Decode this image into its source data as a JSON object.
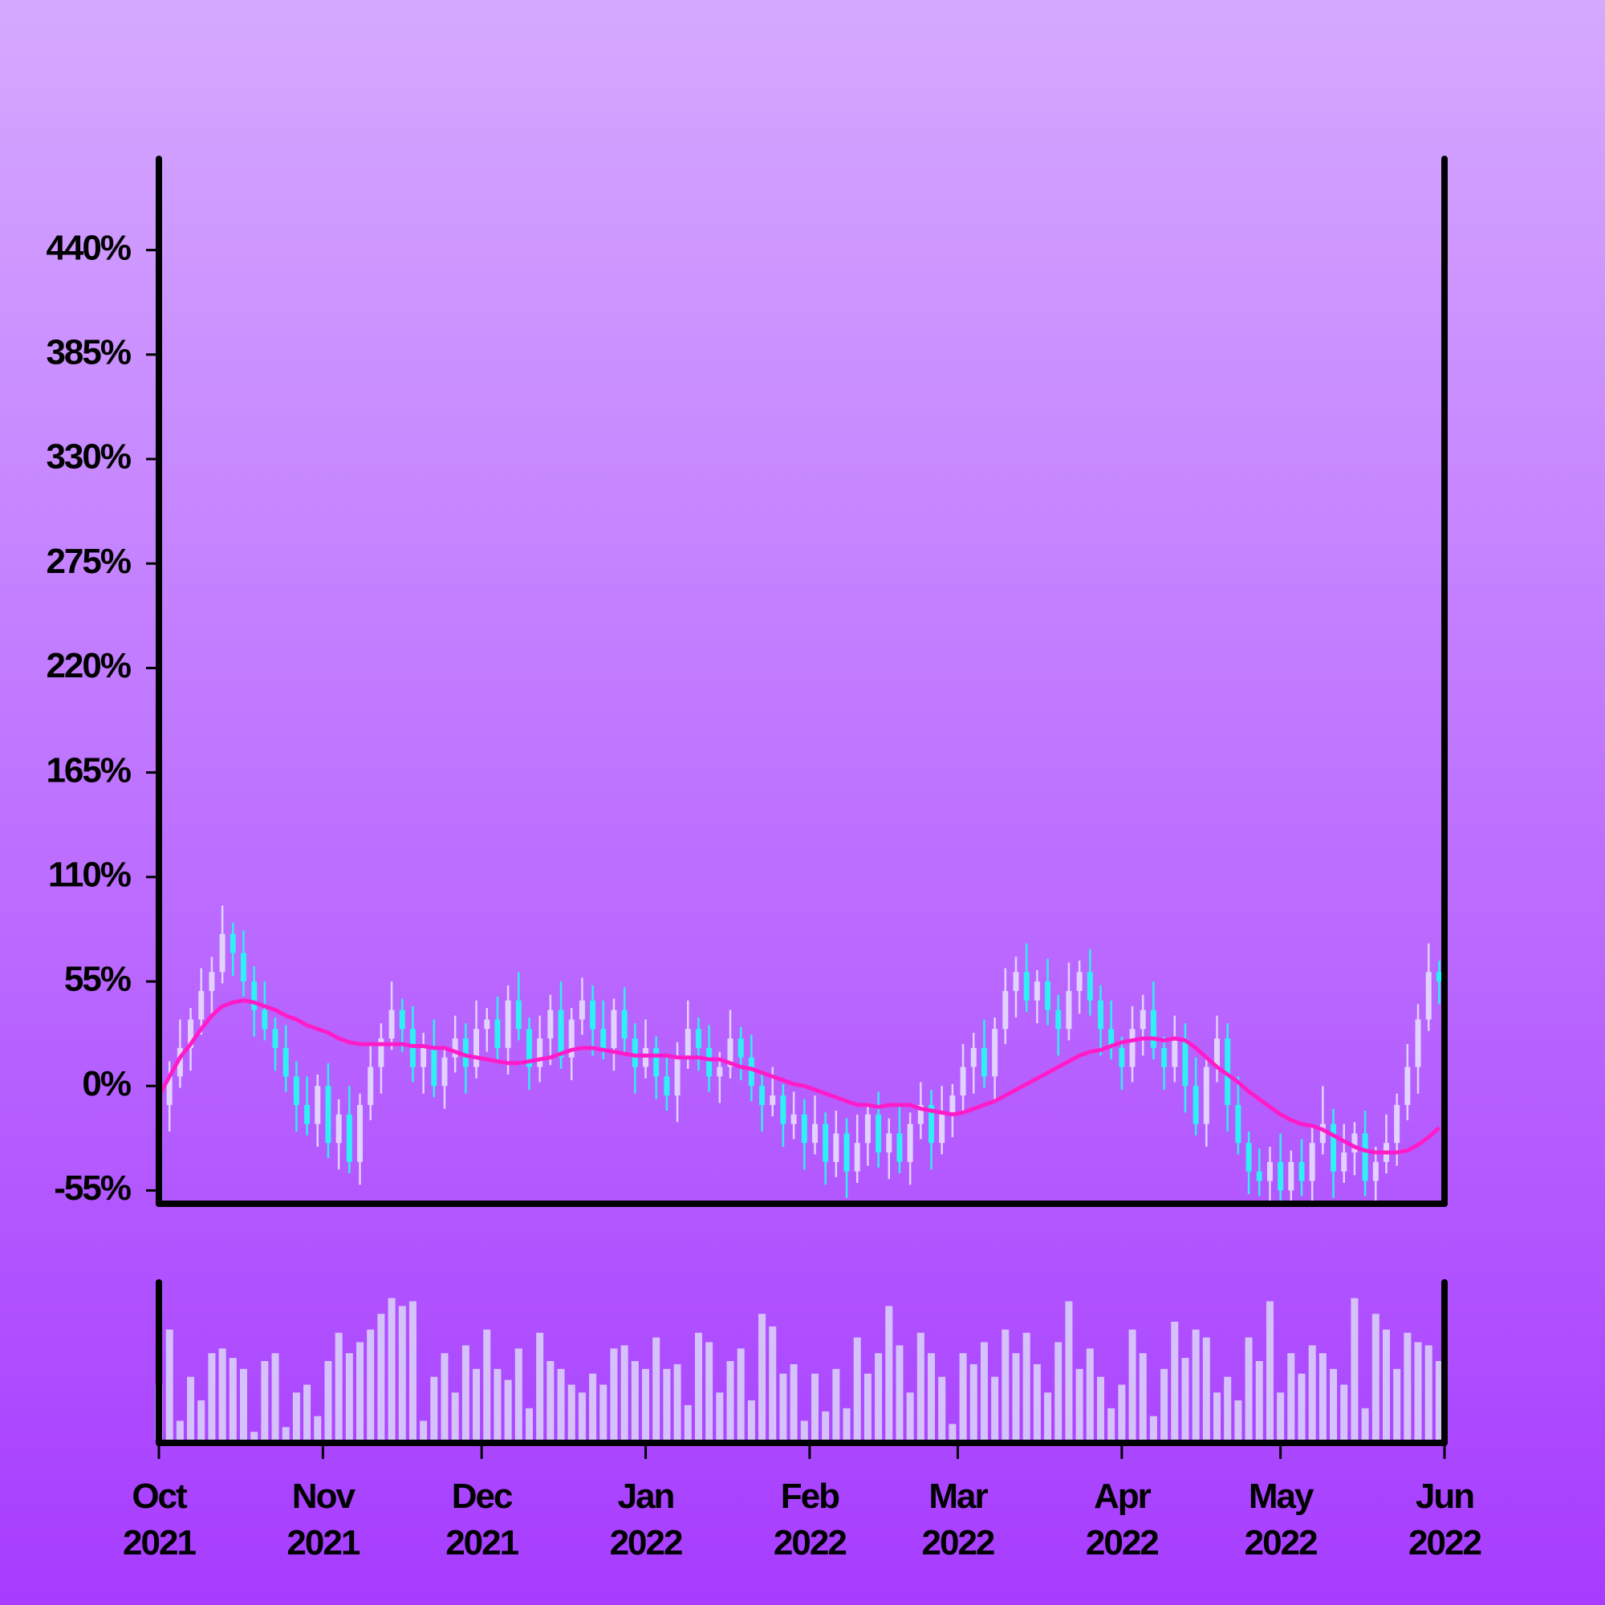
{
  "chart_data": {
    "type": "ohlc",
    "x": [
      0,
      2,
      4,
      6,
      8,
      10,
      12,
      14,
      16,
      18,
      20,
      22,
      24,
      26,
      28,
      30,
      32,
      34,
      36,
      38,
      40,
      42,
      44,
      46,
      48,
      50,
      52,
      54,
      56,
      58,
      60,
      62,
      64,
      66,
      68,
      70,
      72,
      74,
      76,
      78,
      80,
      82,
      84,
      86,
      88,
      90,
      92,
      94,
      96,
      98,
      100,
      102,
      104,
      106,
      108,
      110,
      112,
      114,
      116,
      118,
      120,
      122,
      124,
      126,
      128,
      130,
      132,
      134,
      136,
      138,
      140,
      142,
      144,
      146,
      148,
      150,
      152,
      154,
      156,
      158,
      160,
      162,
      164,
      166,
      168,
      170,
      172,
      174,
      176,
      178,
      180,
      182,
      184,
      186,
      188,
      190,
      192,
      194,
      196,
      198,
      200,
      202,
      204,
      206,
      208,
      210,
      212,
      214,
      216,
      218,
      220,
      222,
      224,
      226,
      228,
      230,
      232,
      234,
      236,
      238,
      240,
      242
    ],
    "open": [
      -5,
      -10,
      5,
      20,
      35,
      50,
      60,
      80,
      70,
      55,
      40,
      30,
      20,
      5,
      -10,
      -20,
      0,
      -30,
      -15,
      -40,
      -10,
      10,
      25,
      40,
      30,
      10,
      20,
      0,
      15,
      25,
      10,
      30,
      35,
      20,
      45,
      30,
      10,
      25,
      40,
      15,
      35,
      45,
      30,
      20,
      40,
      25,
      10,
      20,
      5,
      -5,
      15,
      30,
      20,
      5,
      10,
      25,
      15,
      0,
      -10,
      -5,
      -20,
      -15,
      -30,
      -20,
      -40,
      -25,
      -45,
      -30,
      -15,
      -35,
      -25,
      -40,
      -20,
      -10,
      -30,
      -15,
      -5,
      10,
      20,
      5,
      30,
      50,
      60,
      45,
      55,
      40,
      30,
      50,
      60,
      45,
      30,
      20,
      10,
      30,
      40,
      20,
      10,
      25,
      0,
      -20,
      10,
      25,
      -10,
      -30,
      -45,
      -50,
      -40,
      -55,
      -40,
      -50,
      -30,
      -20,
      -45,
      -35,
      -25,
      -50,
      -40,
      -30,
      -10,
      10,
      35,
      60
    ],
    "high": [
      7,
      13,
      35,
      41,
      62,
      68,
      95,
      86,
      82,
      63,
      55,
      36,
      32,
      13,
      5,
      6,
      12,
      -7,
      0,
      -4,
      22,
      33,
      55,
      46,
      42,
      28,
      35,
      21,
      37,
      33,
      45,
      41,
      47,
      53,
      60,
      36,
      37,
      48,
      55,
      41,
      57,
      53,
      45,
      46,
      52,
      33,
      35,
      26,
      17,
      23,
      45,
      36,
      32,
      18,
      40,
      31,
      27,
      8,
      10,
      1,
      -3,
      -7,
      -5,
      -14,
      -13,
      -17,
      -15,
      -9,
      -3,
      -17,
      -10,
      -14,
      2,
      -2,
      0,
      1,
      22,
      28,
      35,
      36,
      62,
      68,
      75,
      61,
      67,
      48,
      65,
      66,
      72,
      53,
      45,
      26,
      42,
      48,
      55,
      26,
      37,
      33,
      15,
      16,
      37,
      33,
      5,
      -24,
      -33,
      -32,
      -25,
      -34,
      -28,
      -22,
      0,
      -12,
      -20,
      -19,
      -13,
      -32,
      -15,
      -4,
      22,
      43,
      75,
      66
    ],
    "low": [
      -18,
      -24,
      -1,
      8,
      27,
      36,
      54,
      58,
      47,
      26,
      24,
      8,
      -3,
      -24,
      -26,
      -32,
      -38,
      -44,
      -46,
      -52,
      -18,
      -4,
      19,
      18,
      2,
      -4,
      -6,
      -12,
      7,
      -4,
      4,
      18,
      12,
      6,
      24,
      -2,
      2,
      11,
      9,
      3,
      27,
      16,
      14,
      8,
      17,
      -4,
      4,
      -7,
      -13,
      -19,
      9,
      8,
      -3,
      -9,
      4,
      3,
      -8,
      -24,
      -16,
      -32,
      -28,
      -44,
      -36,
      -52,
      -48,
      -59,
      -51,
      -42,
      -43,
      -49,
      -46,
      -52,
      -28,
      -44,
      -36,
      -27,
      -13,
      -4,
      -1,
      -7,
      22,
      36,
      39,
      33,
      32,
      16,
      24,
      38,
      37,
      16,
      14,
      -2,
      2,
      16,
      14,
      -2,
      2,
      -14,
      -26,
      -32,
      2,
      -24,
      -36,
      -57,
      -58,
      -64,
      -61,
      -67,
      -58,
      -64,
      -36,
      -59,
      -51,
      -47,
      -58,
      -64,
      -46,
      -42,
      -18,
      -4,
      29,
      43
    ],
    "close": [
      -10,
      5,
      20,
      35,
      50,
      60,
      80,
      70,
      55,
      40,
      30,
      20,
      5,
      -10,
      -20,
      0,
      -30,
      -15,
      -40,
      -10,
      10,
      25,
      40,
      30,
      10,
      20,
      0,
      15,
      25,
      10,
      30,
      35,
      20,
      45,
      30,
      10,
      25,
      40,
      15,
      35,
      45,
      30,
      20,
      40,
      25,
      10,
      20,
      5,
      -5,
      15,
      30,
      20,
      5,
      10,
      25,
      15,
      0,
      -10,
      -5,
      -20,
      -15,
      -30,
      -20,
      -40,
      -25,
      -45,
      -30,
      -15,
      -35,
      -25,
      -40,
      -20,
      -10,
      -30,
      -15,
      -5,
      10,
      20,
      5,
      30,
      50,
      60,
      45,
      55,
      40,
      30,
      50,
      60,
      45,
      30,
      20,
      10,
      30,
      40,
      20,
      10,
      25,
      0,
      -20,
      10,
      25,
      -10,
      -30,
      -45,
      -50,
      -40,
      -55,
      -40,
      -50,
      -30,
      -20,
      -45,
      -35,
      -25,
      -50,
      -40,
      -30,
      -10,
      10,
      35,
      60,
      55
    ],
    "ma": [
      -5,
      5,
      15,
      22,
      30,
      37,
      42,
      44,
      45,
      44,
      42,
      40,
      37,
      35,
      32,
      30,
      28,
      25,
      23,
      22,
      22,
      22,
      22,
      22,
      21,
      21,
      20,
      20,
      18,
      16,
      15,
      14,
      13,
      12,
      12,
      13,
      14,
      15,
      17,
      19,
      20,
      20,
      19,
      18,
      17,
      16,
      16,
      16,
      16,
      15,
      15,
      15,
      14,
      14,
      12,
      10,
      9,
      7,
      5,
      3,
      1,
      0,
      -2,
      -4,
      -6,
      -8,
      -10,
      -10,
      -11,
      -10,
      -10,
      -10,
      -12,
      -13,
      -14,
      -15,
      -14,
      -12,
      -10,
      -8,
      -5,
      -2,
      1,
      4,
      7,
      10,
      13,
      16,
      18,
      19,
      21,
      23,
      24,
      25,
      25,
      24,
      25,
      24,
      20,
      15,
      10,
      6,
      2,
      -3,
      -7,
      -11,
      -15,
      -18,
      -20,
      -21,
      -23,
      -26,
      -29,
      -32,
      -34,
      -35,
      -35,
      -35,
      -34,
      -31,
      -27,
      -22
    ],
    "volume": [
      35,
      70,
      12,
      40,
      25,
      55,
      58,
      52,
      45,
      5,
      50,
      55,
      8,
      30,
      35,
      15,
      50,
      68,
      55,
      62,
      70,
      80,
      90,
      85,
      88,
      12,
      40,
      55,
      30,
      60,
      45,
      70,
      45,
      38,
      58,
      20,
      68,
      50,
      45,
      35,
      30,
      42,
      35,
      58,
      60,
      50,
      45,
      65,
      45,
      48,
      22,
      68,
      62,
      30,
      50,
      58,
      25,
      80,
      72,
      42,
      48,
      12,
      42,
      18,
      45,
      20,
      65,
      42,
      55,
      85,
      60,
      30,
      68,
      55,
      40,
      10,
      55,
      48,
      62,
      40,
      70,
      55,
      68,
      48,
      30,
      62,
      88,
      45,
      58,
      40,
      20,
      35,
      70,
      55,
      15,
      45,
      75,
      52,
      70,
      65,
      30,
      40,
      25,
      65,
      50,
      88,
      30,
      55,
      42,
      60,
      55,
      45,
      35,
      90,
      20,
      80,
      70,
      45,
      68,
      62,
      60,
      50
    ],
    "ohlc_colors": {
      "up": "#e2d2ff",
      "down": "#2ef0f5"
    },
    "ma_color": "#ff1cc8",
    "volume_color": "#d6c2fb",
    "volume_lim": [
      0,
      100
    ],
    "xlim": [
      0,
      243
    ],
    "xticks": [
      {
        "value": 0,
        "label": "Oct\n2021"
      },
      {
        "value": 31,
        "label": "Nov\n2021"
      },
      {
        "value": 61,
        "label": "Dec\n2021"
      },
      {
        "value": 92,
        "label": "Jan\n2022"
      },
      {
        "value": 123,
        "label": "Feb\n2022"
      },
      {
        "value": 151,
        "label": "Mar\n2022"
      },
      {
        "value": 182,
        "label": "Apr\n2022"
      },
      {
        "value": 212,
        "label": "May\n2022"
      },
      {
        "value": 243,
        "label": "Jun\n2022"
      }
    ],
    "ylim": [
      -62,
      488
    ],
    "yticks": [
      {
        "value": -55,
        "label": "-55%"
      },
      {
        "value": 0,
        "label": "0%"
      },
      {
        "value": 55,
        "label": "55%"
      },
      {
        "value": 110,
        "label": "110%"
      },
      {
        "value": 165,
        "label": "165%"
      },
      {
        "value": 220,
        "label": "220%"
      },
      {
        "value": 275,
        "label": "275%"
      },
      {
        "value": 330,
        "label": "330%"
      },
      {
        "value": 385,
        "label": "385%"
      },
      {
        "value": 440,
        "label": "440%"
      }
    ]
  }
}
